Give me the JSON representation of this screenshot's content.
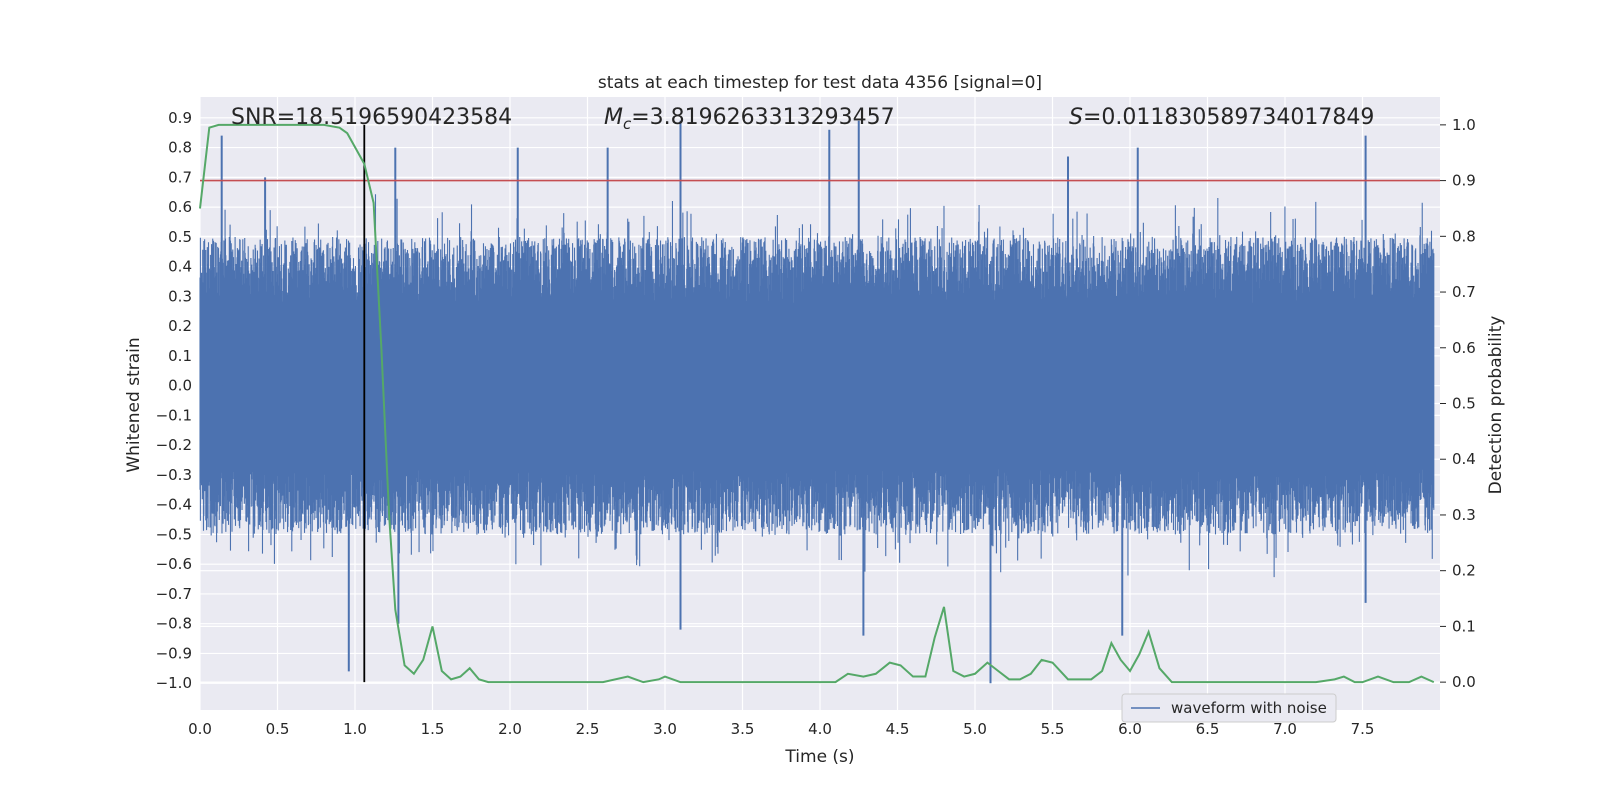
{
  "chart_data": {
    "type": "line",
    "title": "stats at each timestep for test data 4356 [signal=0]",
    "xlabel": "Time (s)",
    "ylabel_left": "Whitened strain",
    "ylabel_right": "Detection probability",
    "xlim": [
      0.0,
      8.0
    ],
    "ylim_left": [
      -1.09,
      0.97
    ],
    "ylim_right": [
      -0.05,
      1.05
    ],
    "x_ticks": [
      "0.0",
      "0.5",
      "1.0",
      "1.5",
      "2.0",
      "2.5",
      "3.0",
      "3.5",
      "4.0",
      "4.5",
      "5.0",
      "5.5",
      "6.0",
      "6.5",
      "7.0",
      "7.5"
    ],
    "y_ticks_left": [
      "0.9",
      "0.8",
      "0.7",
      "0.6",
      "0.5",
      "0.4",
      "0.3",
      "0.2",
      "0.1",
      "0.0",
      "-0.1",
      "-0.2",
      "-0.3",
      "-0.4",
      "-0.5",
      "-0.6",
      "-0.7",
      "-0.8",
      "-0.9",
      "-1.0"
    ],
    "y_ticks_right": [
      "1.0",
      "0.9",
      "0.8",
      "0.7",
      "0.6",
      "0.5",
      "0.4",
      "0.3",
      "0.2",
      "0.1",
      "0.0"
    ],
    "grid": true,
    "legend_position": "lower-right",
    "annotations": {
      "snr": "SNR=18.5196590423584",
      "mc_symbol": "M",
      "mc_sub": "c",
      "mc_value": "=3.8196263313293457",
      "s_symbol": "S",
      "s_value": "=0.011830589734017849"
    },
    "threshold_right": 0.9,
    "marker_time": 1.06,
    "series": [
      {
        "name": "waveform with noise",
        "axis": "left",
        "color": "#4c72b0",
        "noise_envelope": {
          "min": -1.0,
          "max": 0.89,
          "typical_upper": 0.5,
          "typical_lower": -0.5
        },
        "spikes": [
          {
            "x": 0.14,
            "y": 0.84
          },
          {
            "x": 0.42,
            "y": 0.7
          },
          {
            "x": 0.96,
            "y": -0.96
          },
          {
            "x": 1.26,
            "y": 0.8
          },
          {
            "x": 1.28,
            "y": -0.8
          },
          {
            "x": 2.05,
            "y": 0.8
          },
          {
            "x": 2.63,
            "y": 0.8
          },
          {
            "x": 3.1,
            "y": 0.89
          },
          {
            "x": 3.1,
            "y": -0.82
          },
          {
            "x": 4.06,
            "y": 0.86
          },
          {
            "x": 4.25,
            "y": 0.89
          },
          {
            "x": 4.28,
            "y": -0.84
          },
          {
            "x": 5.1,
            "y": -1.0
          },
          {
            "x": 5.6,
            "y": 0.77
          },
          {
            "x": 5.95,
            "y": -0.84
          },
          {
            "x": 6.05,
            "y": 0.8
          },
          {
            "x": 7.52,
            "y": 0.84
          },
          {
            "x": 7.52,
            "y": -0.73
          }
        ]
      },
      {
        "name": "",
        "axis": "right",
        "color": "#55a868",
        "x": [
          0.0,
          0.06,
          0.12,
          0.2,
          0.4,
          0.6,
          0.8,
          0.9,
          0.95,
          1.0,
          1.06,
          1.12,
          1.17,
          1.22,
          1.26,
          1.32,
          1.38,
          1.44,
          1.5,
          1.56,
          1.62,
          1.68,
          1.74,
          1.8,
          1.86,
          1.92,
          2.0,
          2.2,
          2.4,
          2.6,
          2.76,
          2.86,
          2.96,
          3.0,
          3.1,
          3.3,
          3.5,
          3.8,
          4.0,
          4.1,
          4.18,
          4.28,
          4.36,
          4.45,
          4.52,
          4.6,
          4.68,
          4.74,
          4.8,
          4.86,
          4.93,
          5.0,
          5.08,
          5.15,
          5.22,
          5.29,
          5.36,
          5.43,
          5.5,
          5.6,
          5.75,
          5.82,
          5.88,
          5.94,
          6.0,
          6.06,
          6.12,
          6.19,
          6.27,
          6.4,
          6.6,
          6.8,
          7.0,
          7.2,
          7.32,
          7.38,
          7.45,
          7.5,
          7.6,
          7.7,
          7.8,
          7.88,
          7.96
        ],
        "y": [
          0.85,
          0.995,
          1.0,
          1.0,
          1.0,
          1.0,
          1.0,
          0.995,
          0.985,
          0.96,
          0.93,
          0.86,
          0.6,
          0.3,
          0.13,
          0.03,
          0.015,
          0.04,
          0.1,
          0.02,
          0.005,
          0.01,
          0.025,
          0.005,
          0.0,
          0.0,
          0.0,
          0.0,
          0.0,
          0.0,
          0.01,
          0.0,
          0.005,
          0.01,
          0.0,
          0.0,
          0.0,
          0.0,
          0.0,
          0.0,
          0.015,
          0.01,
          0.015,
          0.035,
          0.03,
          0.01,
          0.01,
          0.08,
          0.135,
          0.02,
          0.01,
          0.015,
          0.035,
          0.02,
          0.005,
          0.005,
          0.015,
          0.04,
          0.035,
          0.005,
          0.005,
          0.02,
          0.07,
          0.04,
          0.02,
          0.05,
          0.09,
          0.025,
          0.0,
          0.0,
          0.0,
          0.0,
          0.0,
          0.0,
          0.005,
          0.01,
          0.0,
          0.0,
          0.01,
          0.0,
          0.0,
          0.01,
          0.0
        ]
      }
    ]
  }
}
